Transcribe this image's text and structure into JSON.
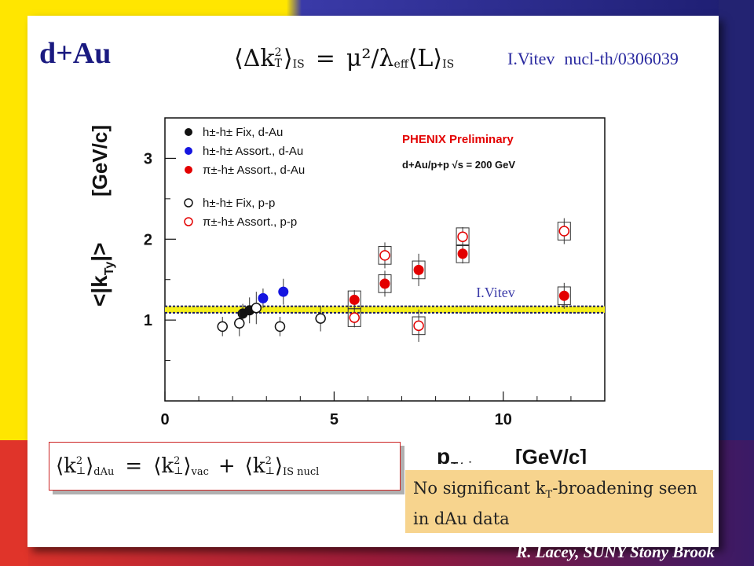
{
  "slide": {
    "title": "d+Au",
    "formula_top": {
      "lhs": "⟨Δk",
      "lhs_sub": "T",
      "lhs_sup": "2",
      "lhs_close": "⟩",
      "lhs_idx": "IS",
      "eq": "=",
      "rhs": "μ²/λ",
      "rhs_sub": "eff",
      "rhs_l": "⟨L⟩",
      "rhs_idx": "IS"
    },
    "reference": {
      "author": "I.Vitev",
      "paper": "nucl-th/0306039"
    },
    "note": {
      "text_before": "No significant k",
      "sub": "T",
      "text_after": "-broadening seen in dAu data"
    },
    "footer": "R. Lacey, SUNY Stony Brook",
    "bottom_formula": {
      "term1": "⟨k",
      "sub_perp": "⊥",
      "sup2": "2",
      "close": "⟩",
      "idx1": "dAu",
      "eq": "=",
      "idx2": "vac",
      "plus": "+",
      "idx3": "IS nucl"
    },
    "colors": {
      "red": "#e30000",
      "blue": "#1515e0",
      "black": "#111111",
      "yellow_band": "#f5ef1a",
      "title": "#1a1a80",
      "note_bg": "#f7d48e"
    }
  },
  "chart_data": {
    "type": "scatter",
    "xlabel": "p",
    "xlabel_sub": "T,trig",
    "xlabel_unit": "[GeV/c]",
    "ylabel": "<|k",
    "ylabel_sub": "Ty",
    "ylabel_close": "|>",
    "ylabel_unit": "[GeV/c]",
    "xlim": [
      0,
      13
    ],
    "ylim": [
      0,
      3.5
    ],
    "xticks": [
      0,
      5,
      10
    ],
    "yticks": [
      1,
      2,
      3
    ],
    "label_top": "PHENIX Preliminary",
    "label_energy": "d+Au/p+p √s = 200 GeV",
    "band_label": "I.Vitev",
    "band": {
      "y": 1.13,
      "half_width": 0.04
    },
    "series": [
      {
        "name": "h±-h± Fix, d-Au",
        "marker": "filled",
        "color": "#111111",
        "points": [
          {
            "x": 2.3,
            "y": 1.08
          },
          {
            "x": 2.5,
            "y": 1.12
          }
        ]
      },
      {
        "name": "h±-h± Assort., d-Au",
        "marker": "filled",
        "color": "#1515e0",
        "points": [
          {
            "x": 2.9,
            "y": 1.27
          },
          {
            "x": 3.5,
            "y": 1.35
          }
        ]
      },
      {
        "name": "π±-h± Assort., d-Au",
        "marker": "filled",
        "color": "#e30000",
        "points": [
          {
            "x": 5.6,
            "y": 1.25
          },
          {
            "x": 6.5,
            "y": 1.45
          },
          {
            "x": 7.5,
            "y": 1.62
          },
          {
            "x": 8.8,
            "y": 1.82
          },
          {
            "x": 11.8,
            "y": 1.3
          }
        ]
      },
      {
        "name": "h±-h± Fix, p-p",
        "marker": "open",
        "color": "#111111",
        "points": [
          {
            "x": 1.7,
            "y": 0.92
          },
          {
            "x": 2.2,
            "y": 0.96
          },
          {
            "x": 2.7,
            "y": 1.15
          },
          {
            "x": 3.4,
            "y": 0.92
          },
          {
            "x": 4.6,
            "y": 1.02
          }
        ]
      },
      {
        "name": "π±-h± Assort., p-p",
        "marker": "open",
        "color": "#e30000",
        "points": [
          {
            "x": 5.6,
            "y": 1.03
          },
          {
            "x": 6.5,
            "y": 1.8
          },
          {
            "x": 7.5,
            "y": 0.93
          },
          {
            "x": 8.8,
            "y": 2.03
          },
          {
            "x": 11.8,
            "y": 2.1
          }
        ]
      }
    ]
  }
}
